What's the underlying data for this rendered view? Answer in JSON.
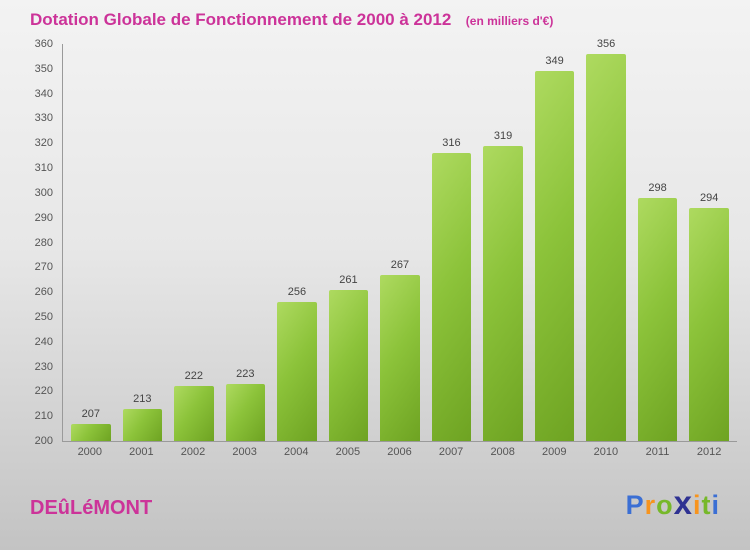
{
  "header": {
    "title": "Dotation Globale de Fonctionnement de 2000 à 2012",
    "subtitle": "(en milliers d'€)"
  },
  "footer": {
    "location": "DEûLéMONT",
    "logo_letters": [
      {
        "ch": "P",
        "color": "#3b6fd4"
      },
      {
        "ch": "r",
        "color": "#f7941d"
      },
      {
        "ch": "o",
        "color": "#76b82a"
      },
      {
        "ch": "x",
        "color": "#2e3192"
      },
      {
        "ch": "i",
        "color": "#f7941d"
      },
      {
        "ch": "t",
        "color": "#76b82a"
      },
      {
        "ch": "i",
        "color": "#3b6fd4"
      }
    ]
  },
  "colors": {
    "title": "#cc3399",
    "bar_gradient_light": "#aeda60",
    "bar_gradient_dark": "#6ea322",
    "axis": "#9a9a9a",
    "tick_label": "#555555",
    "value_label": "#444444"
  },
  "chart_data": {
    "type": "bar",
    "title": "Dotation Globale de Fonctionnement de 2000 à 2012",
    "subtitle": "(en milliers d'€)",
    "categories": [
      "2000",
      "2001",
      "2002",
      "2003",
      "2004",
      "2005",
      "2006",
      "2007",
      "2008",
      "2009",
      "2010",
      "2011",
      "2012"
    ],
    "values": [
      207,
      213,
      222,
      223,
      256,
      261,
      267,
      316,
      319,
      349,
      356,
      298,
      294
    ],
    "xlabel": "",
    "ylabel": "",
    "ylim": [
      200,
      360
    ],
    "ytick_step": 10,
    "grid": false,
    "legend": false
  }
}
